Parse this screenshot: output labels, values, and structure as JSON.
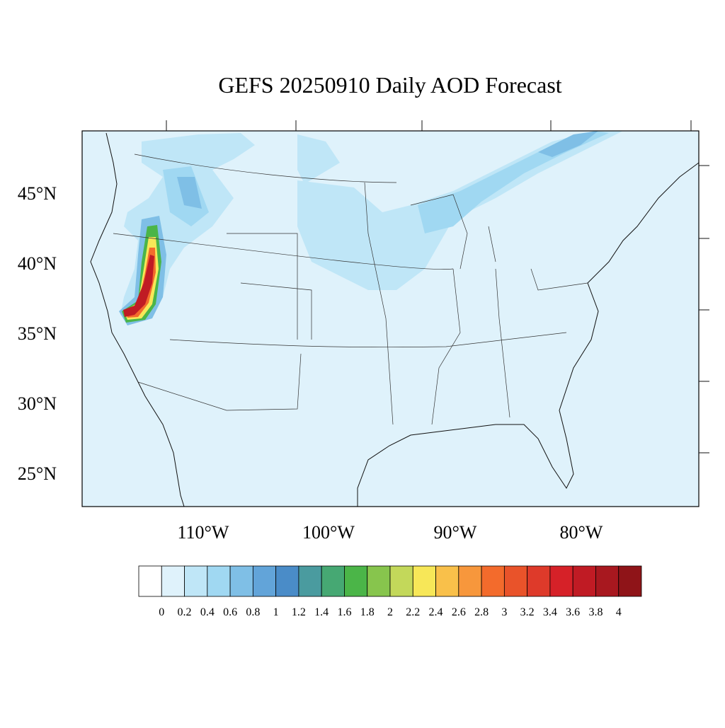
{
  "title": "GEFS 20250910 Daily AOD Forecast",
  "lat_labels": [
    "45°N",
    "40°N",
    "35°N",
    "30°N",
    "25°N"
  ],
  "lon_labels": [
    "110°W",
    "100°W",
    "90°W",
    "80°W"
  ],
  "colorbar": {
    "labels": [
      0,
      0.2,
      0.4,
      0.6,
      0.8,
      1,
      1.2,
      1.4,
      1.6,
      1.8,
      2,
      2.2,
      2.4,
      2.6,
      2.8,
      3,
      3.2,
      3.4,
      3.6,
      3.8,
      4
    ],
    "colors": [
      "#ffffff",
      "#dff2fb",
      "#bfe6f7",
      "#a0d8f2",
      "#7fbfe6",
      "#62a4d9",
      "#4a8cc8",
      "#4a9b9f",
      "#46a873",
      "#4bb548",
      "#87c54d",
      "#c3d85a",
      "#f7e758",
      "#f9c04a",
      "#f7973c",
      "#f36b2c",
      "#e9532a",
      "#de3a2a",
      "#d62128",
      "#c01b24",
      "#a8181f",
      "#8f1418"
    ]
  }
}
